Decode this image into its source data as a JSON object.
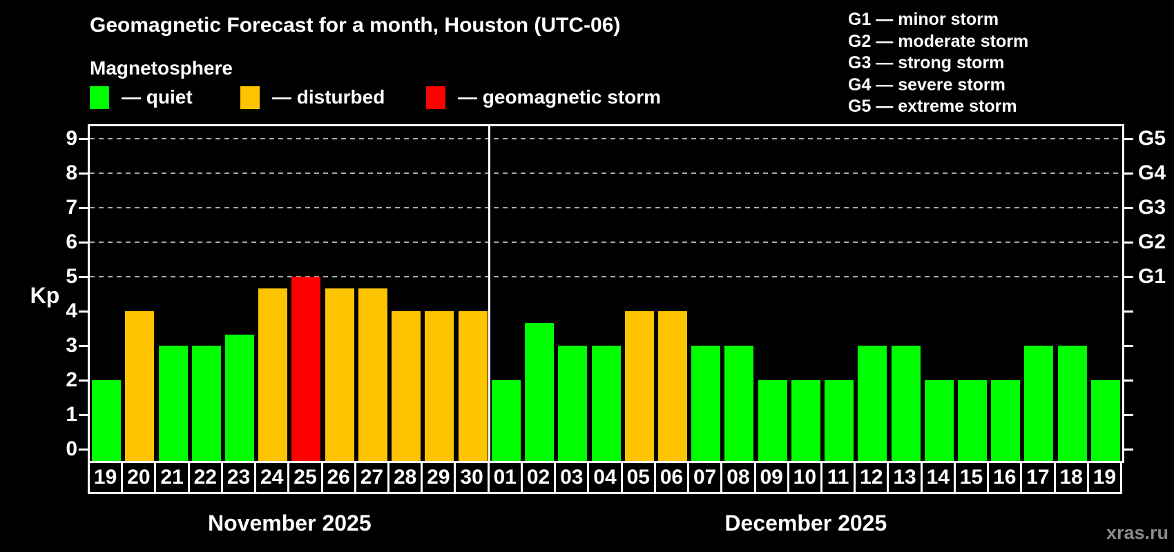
{
  "header": {
    "title": "Geomagnetic Forecast for a month, Houston (UTC-06)",
    "subtitle": "Magnetosphere"
  },
  "status_legend": [
    {
      "name": "quiet",
      "label": "— quiet",
      "color": "#00ff00"
    },
    {
      "name": "disturbed",
      "label": "— disturbed",
      "color": "#ffc400"
    },
    {
      "name": "storm",
      "label": "— geomagnetic storm",
      "color": "#ff0000"
    }
  ],
  "g_scale_legend": [
    "G1 — minor storm",
    "G2 — moderate storm",
    "G3 — strong storm",
    "G4 — severe storm",
    "G5 — extreme storm"
  ],
  "axes": {
    "y_label": "Kp",
    "y_ticks": [
      "0",
      "1",
      "2",
      "3",
      "4",
      "5",
      "6",
      "7",
      "8",
      "9"
    ]
  },
  "footer": {
    "watermark": "xras.ru"
  },
  "chart_data": {
    "type": "bar",
    "title": "Geomagnetic Forecast for a month, Houston (UTC-06)",
    "ylabel": "Kp",
    "ylim": [
      0,
      9
    ],
    "grid": "dashed horizontal at Kp 5-9 only",
    "gridlines_at": [
      5,
      6,
      7,
      8,
      9
    ],
    "g_levels": [
      {
        "label": "G1",
        "value": 5
      },
      {
        "label": "G2",
        "value": 6
      },
      {
        "label": "G3",
        "value": 7
      },
      {
        "label": "G4",
        "value": 8
      },
      {
        "label": "G5",
        "value": 9
      }
    ],
    "status_colors": {
      "quiet": "#00ff00",
      "disturbed": "#ffc400",
      "storm": "#ff0000"
    },
    "months": [
      {
        "label": "November 2025",
        "bars": [
          {
            "day": "19",
            "kp": 2,
            "status": "quiet"
          },
          {
            "day": "20",
            "kp": 4,
            "status": "disturbed"
          },
          {
            "day": "21",
            "kp": 3,
            "status": "quiet"
          },
          {
            "day": "22",
            "kp": 3,
            "status": "quiet"
          },
          {
            "day": "23",
            "kp": 3.33,
            "status": "quiet"
          },
          {
            "day": "24",
            "kp": 4.67,
            "status": "disturbed"
          },
          {
            "day": "25",
            "kp": 5,
            "status": "storm"
          },
          {
            "day": "26",
            "kp": 4.67,
            "status": "disturbed"
          },
          {
            "day": "27",
            "kp": 4.67,
            "status": "disturbed"
          },
          {
            "day": "28",
            "kp": 4,
            "status": "disturbed"
          },
          {
            "day": "29",
            "kp": 4,
            "status": "disturbed"
          },
          {
            "day": "30",
            "kp": 4,
            "status": "disturbed"
          }
        ]
      },
      {
        "label": "December 2025",
        "bars": [
          {
            "day": "01",
            "kp": 2,
            "status": "quiet"
          },
          {
            "day": "02",
            "kp": 3.67,
            "status": "quiet"
          },
          {
            "day": "03",
            "kp": 3,
            "status": "quiet"
          },
          {
            "day": "04",
            "kp": 3,
            "status": "quiet"
          },
          {
            "day": "05",
            "kp": 4,
            "status": "disturbed"
          },
          {
            "day": "06",
            "kp": 4,
            "status": "disturbed"
          },
          {
            "day": "07",
            "kp": 3,
            "status": "quiet"
          },
          {
            "day": "08",
            "kp": 3,
            "status": "quiet"
          },
          {
            "day": "09",
            "kp": 2,
            "status": "quiet"
          },
          {
            "day": "10",
            "kp": 2,
            "status": "quiet"
          },
          {
            "day": "11",
            "kp": 2,
            "status": "quiet"
          },
          {
            "day": "12",
            "kp": 3,
            "status": "quiet"
          },
          {
            "day": "13",
            "kp": 3,
            "status": "quiet"
          },
          {
            "day": "14",
            "kp": 2,
            "status": "quiet"
          },
          {
            "day": "15",
            "kp": 2,
            "status": "quiet"
          },
          {
            "day": "16",
            "kp": 2,
            "status": "quiet"
          },
          {
            "day": "17",
            "kp": 3,
            "status": "quiet"
          },
          {
            "day": "18",
            "kp": 3,
            "status": "quiet"
          },
          {
            "day": "19",
            "kp": 2,
            "status": "quiet"
          }
        ]
      }
    ]
  }
}
